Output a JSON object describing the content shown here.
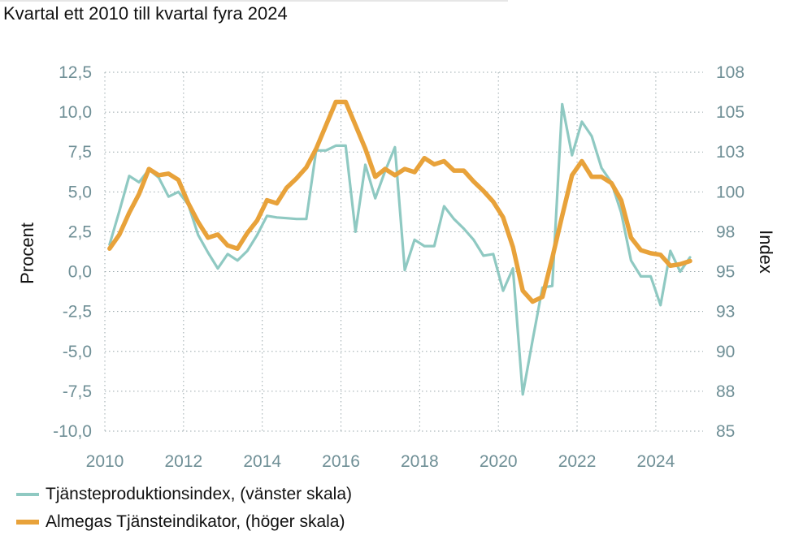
{
  "title": "Kvartal ett 2010 till kvartal fyra 2024",
  "chart_data": {
    "type": "line",
    "ylabel_left": "Procent",
    "ylabel_right": "Index",
    "yticks_left": [
      "12,5",
      "10,0",
      "7,5",
      "5,0",
      "2,5",
      "0,0",
      "-2,5",
      "-5,0",
      "-7,5",
      "-10,0"
    ],
    "ylim_left": [
      -10,
      12.5
    ],
    "yticks_right": [
      "108",
      "105",
      "103",
      "100",
      "98",
      "95",
      "93",
      "90",
      "88",
      "85"
    ],
    "ylim_right": [
      85,
      108
    ],
    "xticks": [
      "2010",
      "2012",
      "2014",
      "2016",
      "2018",
      "2020",
      "2022",
      "2024"
    ],
    "xlim": [
      2010,
      2025.2
    ],
    "grid": true,
    "legend_position": "bottom-left",
    "series": [
      {
        "name": "Tjänsteproduktionsindex, (vänster skala)",
        "axis": "left",
        "color": "#8fc9c2",
        "points": [
          [
            2010.12,
            1.7
          ],
          [
            2010.37,
            3.8
          ],
          [
            2010.62,
            6.0
          ],
          [
            2010.87,
            5.6
          ],
          [
            2011.12,
            6.4
          ],
          [
            2011.37,
            5.9
          ],
          [
            2011.62,
            4.7
          ],
          [
            2011.87,
            5.0
          ],
          [
            2012.12,
            4.2
          ],
          [
            2012.37,
            2.3
          ],
          [
            2012.62,
            1.2
          ],
          [
            2012.87,
            0.2
          ],
          [
            2013.12,
            1.1
          ],
          [
            2013.37,
            0.7
          ],
          [
            2013.62,
            1.3
          ],
          [
            2013.87,
            2.3
          ],
          [
            2014.12,
            3.5
          ],
          [
            2014.37,
            3.4
          ],
          [
            2014.62,
            3.35
          ],
          [
            2014.87,
            3.3
          ],
          [
            2015.12,
            3.3
          ],
          [
            2015.37,
            7.6
          ],
          [
            2015.62,
            7.6
          ],
          [
            2015.87,
            7.9
          ],
          [
            2016.12,
            7.9
          ],
          [
            2016.37,
            2.5
          ],
          [
            2016.62,
            6.7
          ],
          [
            2016.87,
            4.6
          ],
          [
            2017.12,
            6.3
          ],
          [
            2017.37,
            7.8
          ],
          [
            2017.62,
            0.1
          ],
          [
            2017.87,
            2.0
          ],
          [
            2018.12,
            1.6
          ],
          [
            2018.37,
            1.6
          ],
          [
            2018.62,
            4.1
          ],
          [
            2018.87,
            3.3
          ],
          [
            2019.12,
            2.7
          ],
          [
            2019.37,
            2.0
          ],
          [
            2019.62,
            1.0
          ],
          [
            2019.87,
            1.1
          ],
          [
            2020.12,
            -1.2
          ],
          [
            2020.37,
            0.2
          ],
          [
            2020.62,
            -7.7
          ],
          [
            2020.87,
            -4.3
          ],
          [
            2021.12,
            -1.0
          ],
          [
            2021.37,
            -0.9
          ],
          [
            2021.62,
            10.5
          ],
          [
            2021.87,
            7.3
          ],
          [
            2022.12,
            9.4
          ],
          [
            2022.37,
            8.5
          ],
          [
            2022.62,
            6.5
          ],
          [
            2022.87,
            5.6
          ],
          [
            2023.12,
            3.7
          ],
          [
            2023.37,
            0.7
          ],
          [
            2023.62,
            -0.3
          ],
          [
            2023.87,
            -0.3
          ],
          [
            2024.12,
            -2.1
          ],
          [
            2024.37,
            1.3
          ],
          [
            2024.62,
            0.0
          ],
          [
            2024.87,
            0.9
          ]
        ]
      },
      {
        "name": "Almegas Tjänsteindikator, (höger skala)",
        "axis": "right",
        "color": "#e8a23a",
        "points": [
          [
            2010.12,
            96.7
          ],
          [
            2010.37,
            97.6
          ],
          [
            2010.62,
            99.0
          ],
          [
            2010.87,
            100.2
          ],
          [
            2011.12,
            101.8
          ],
          [
            2011.37,
            101.4
          ],
          [
            2011.62,
            101.5
          ],
          [
            2011.87,
            101.1
          ],
          [
            2012.12,
            99.6
          ],
          [
            2012.37,
            98.4
          ],
          [
            2012.62,
            97.4
          ],
          [
            2012.87,
            97.6
          ],
          [
            2013.12,
            96.9
          ],
          [
            2013.37,
            96.7
          ],
          [
            2013.62,
            97.7
          ],
          [
            2013.87,
            98.5
          ],
          [
            2014.12,
            99.8
          ],
          [
            2014.37,
            99.6
          ],
          [
            2014.62,
            100.6
          ],
          [
            2014.87,
            101.2
          ],
          [
            2015.12,
            101.9
          ],
          [
            2015.37,
            103.1
          ],
          [
            2015.62,
            104.6
          ],
          [
            2015.87,
            106.1
          ],
          [
            2016.12,
            106.1
          ],
          [
            2016.37,
            104.6
          ],
          [
            2016.62,
            103.1
          ],
          [
            2016.87,
            101.3
          ],
          [
            2017.12,
            101.8
          ],
          [
            2017.37,
            101.4
          ],
          [
            2017.62,
            101.8
          ],
          [
            2017.87,
            101.6
          ],
          [
            2018.12,
            102.5
          ],
          [
            2018.37,
            102.1
          ],
          [
            2018.62,
            102.3
          ],
          [
            2018.87,
            101.7
          ],
          [
            2019.12,
            101.7
          ],
          [
            2019.37,
            101.0
          ],
          [
            2019.62,
            100.4
          ],
          [
            2019.87,
            99.7
          ],
          [
            2020.12,
            98.7
          ],
          [
            2020.37,
            96.8
          ],
          [
            2020.62,
            94.0
          ],
          [
            2020.87,
            93.3
          ],
          [
            2021.12,
            93.6
          ],
          [
            2021.37,
            96.1
          ],
          [
            2021.62,
            98.8
          ],
          [
            2021.87,
            101.4
          ],
          [
            2022.12,
            102.3
          ],
          [
            2022.37,
            101.3
          ],
          [
            2022.62,
            101.3
          ],
          [
            2022.87,
            100.9
          ],
          [
            2023.12,
            99.8
          ],
          [
            2023.37,
            97.4
          ],
          [
            2023.62,
            96.6
          ],
          [
            2023.87,
            96.4
          ],
          [
            2024.12,
            96.3
          ],
          [
            2024.37,
            95.6
          ],
          [
            2024.62,
            95.7
          ],
          [
            2024.87,
            95.9
          ]
        ]
      }
    ]
  }
}
